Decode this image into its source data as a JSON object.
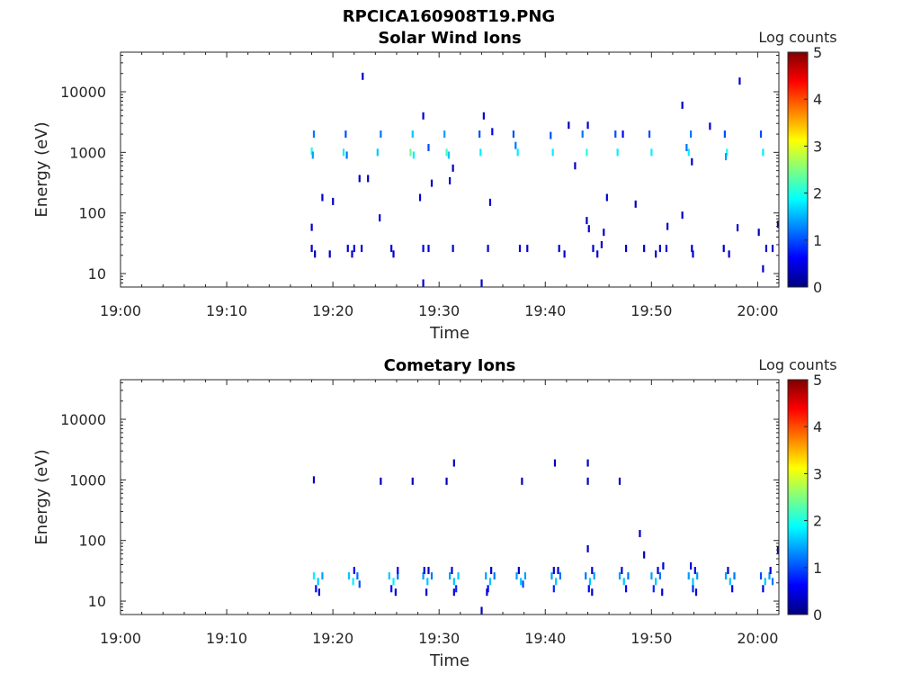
{
  "figure": {
    "filename": "RPCICA160908T19.PNG",
    "colorbar": {
      "label": "Log counts",
      "ticks": [
        "0",
        "1",
        "2",
        "3",
        "4",
        "5"
      ],
      "range": [
        0,
        5
      ],
      "colormap": "jet"
    }
  },
  "chart_data": [
    {
      "type": "heatmap",
      "title": "Solar Wind Ions",
      "xlabel": "Time",
      "ylabel": "Energy (eV)",
      "x_ticks": [
        "19:00",
        "19:10",
        "19:20",
        "19:30",
        "19:40",
        "19:50",
        "20:00"
      ],
      "y_ticks": [
        "10",
        "100",
        "1000",
        "10000"
      ],
      "y_scale": "log",
      "x_range_min": [
        0,
        62
      ],
      "y_range_ev": [
        6,
        45000
      ],
      "note_x_units": "minutes after 19:00",
      "cells": [
        [
          18.2,
          2000,
          1.2
        ],
        [
          18.0,
          1050,
          2.0
        ],
        [
          18.1,
          900,
          1.4
        ],
        [
          21.2,
          2000,
          1.0
        ],
        [
          21.0,
          1000,
          1.8
        ],
        [
          21.3,
          900,
          1.2
        ],
        [
          24.5,
          2000,
          1.2
        ],
        [
          24.2,
          1000,
          1.6
        ],
        [
          27.5,
          2000,
          1.6
        ],
        [
          27.3,
          1000,
          2.4
        ],
        [
          27.6,
          900,
          1.8
        ],
        [
          28.5,
          4000,
          0.4
        ],
        [
          29.0,
          1200,
          1.0
        ],
        [
          30.5,
          2000,
          1.4
        ],
        [
          30.7,
          1000,
          2.2
        ],
        [
          30.9,
          900,
          1.6
        ],
        [
          33.8,
          2000,
          1.0
        ],
        [
          33.9,
          1000,
          1.8
        ],
        [
          34.2,
          4000,
          0.4
        ],
        [
          35.0,
          2200,
          0.6
        ],
        [
          37.0,
          2000,
          1.0
        ],
        [
          37.4,
          1000,
          1.8
        ],
        [
          37.2,
          1300,
          1.2
        ],
        [
          40.5,
          1900,
          1.0
        ],
        [
          40.7,
          1000,
          1.8
        ],
        [
          43.5,
          2000,
          1.2
        ],
        [
          43.9,
          1000,
          2.0
        ],
        [
          44.0,
          2800,
          0.4
        ],
        [
          46.6,
          2000,
          1.0
        ],
        [
          46.8,
          1000,
          1.8
        ],
        [
          49.8,
          2000,
          1.0
        ],
        [
          50.0,
          1000,
          1.8
        ],
        [
          53.7,
          2000,
          1.2
        ],
        [
          53.5,
          1000,
          1.8
        ],
        [
          53.3,
          1200,
          1.2
        ],
        [
          53.8,
          700,
          0.4
        ],
        [
          56.9,
          2000,
          1.0
        ],
        [
          57.1,
          1000,
          2.0
        ],
        [
          57.0,
          850,
          1.4
        ],
        [
          60.3,
          2000,
          1.0
        ],
        [
          60.5,
          1000,
          1.8
        ],
        [
          55.5,
          2700,
          0.4
        ],
        [
          58.3,
          15000,
          0.4
        ],
        [
          22.8,
          18000,
          0.4
        ],
        [
          52.9,
          6000,
          0.4
        ],
        [
          42.2,
          2800,
          0.3
        ],
        [
          47.3,
          2000,
          0.6
        ],
        [
          18.0,
          58,
          0.4
        ],
        [
          19.0,
          180,
          0.4
        ],
        [
          20.0,
          155,
          0.3
        ],
        [
          22.5,
          370,
          0.3
        ],
        [
          23.3,
          370,
          0.3
        ],
        [
          24.4,
          83,
          0.4
        ],
        [
          28.2,
          180,
          0.4
        ],
        [
          29.3,
          310,
          0.3
        ],
        [
          31.0,
          340,
          0.3
        ],
        [
          31.3,
          550,
          0.3
        ],
        [
          34.8,
          150,
          0.4
        ],
        [
          42.8,
          600,
          0.3
        ],
        [
          43.9,
          75,
          0.3
        ],
        [
          44.1,
          55,
          0.4
        ],
        [
          45.5,
          48,
          0.4
        ],
        [
          45.8,
          180,
          0.4
        ],
        [
          48.5,
          140,
          0.3
        ],
        [
          51.5,
          60,
          0.4
        ],
        [
          52.9,
          92,
          0.4
        ],
        [
          58.1,
          57,
          0.4
        ],
        [
          60.1,
          48,
          0.3
        ],
        [
          61.9,
          65,
          0.3
        ],
        [
          18.0,
          26,
          0.4
        ],
        [
          18.3,
          21,
          0.3
        ],
        [
          19.7,
          21,
          0.3
        ],
        [
          21.4,
          26,
          0.5
        ],
        [
          22.0,
          26,
          0.5
        ],
        [
          21.8,
          21,
          0.4
        ],
        [
          22.7,
          26,
          0.4
        ],
        [
          25.5,
          26,
          0.4
        ],
        [
          25.7,
          21,
          0.4
        ],
        [
          28.5,
          26,
          0.5
        ],
        [
          29.0,
          26,
          0.4
        ],
        [
          31.3,
          26,
          0.4
        ],
        [
          34.6,
          26,
          0.4
        ],
        [
          37.6,
          26,
          0.4
        ],
        [
          38.3,
          26,
          0.4
        ],
        [
          41.3,
          26,
          0.4
        ],
        [
          41.8,
          21,
          0.4
        ],
        [
          44.5,
          26,
          0.4
        ],
        [
          44.9,
          21,
          0.4
        ],
        [
          45.3,
          30,
          0.4
        ],
        [
          47.6,
          26,
          0.4
        ],
        [
          49.3,
          26,
          0.4
        ],
        [
          50.8,
          26,
          0.4
        ],
        [
          50.4,
          21,
          0.4
        ],
        [
          51.4,
          26,
          0.4
        ],
        [
          53.8,
          26,
          0.4
        ],
        [
          53.9,
          21,
          0.4
        ],
        [
          56.8,
          26,
          0.4
        ],
        [
          57.3,
          21,
          0.4
        ],
        [
          60.8,
          26,
          0.4
        ],
        [
          61.4,
          26,
          0.4
        ],
        [
          60.5,
          12,
          0.4
        ],
        [
          28.5,
          7,
          0.4
        ],
        [
          34.0,
          7,
          0.4
        ]
      ]
    },
    {
      "type": "heatmap",
      "title": "Cometary Ions",
      "xlabel": "Time",
      "ylabel": "Energy (eV)",
      "x_ticks": [
        "19:00",
        "19:10",
        "19:20",
        "19:30",
        "19:40",
        "19:50",
        "20:00"
      ],
      "y_ticks": [
        "10",
        "100",
        "1000",
        "10000"
      ],
      "y_scale": "log",
      "x_range_min": [
        0,
        62
      ],
      "y_range_ev": [
        6,
        45000
      ],
      "note_x_units": "minutes after 19:00",
      "cells": [
        [
          18.2,
          1000,
          0.3
        ],
        [
          24.5,
          950,
          0.3
        ],
        [
          27.5,
          950,
          0.3
        ],
        [
          30.7,
          950,
          0.3
        ],
        [
          31.4,
          1900,
          0.3
        ],
        [
          37.8,
          950,
          0.3
        ],
        [
          40.9,
          1900,
          0.3
        ],
        [
          44.0,
          1900,
          0.3
        ],
        [
          44.0,
          950,
          0.3
        ],
        [
          47.0,
          950,
          0.3
        ],
        [
          48.9,
          130,
          0.3
        ],
        [
          49.3,
          58,
          0.3
        ],
        [
          44.0,
          73,
          0.3
        ],
        [
          61.9,
          70,
          0.3
        ],
        [
          34.0,
          7,
          0.3
        ],
        [
          18.2,
          26,
          1.8
        ],
        [
          18.6,
          21,
          1.6
        ],
        [
          19.0,
          26,
          1.4
        ],
        [
          18.4,
          16,
          0.6
        ],
        [
          18.7,
          14,
          0.4
        ],
        [
          21.5,
          26,
          1.6
        ],
        [
          21.9,
          21,
          1.8
        ],
        [
          22.3,
          26,
          1.2
        ],
        [
          22.0,
          32,
          0.6
        ],
        [
          22.5,
          19,
          1.0
        ],
        [
          25.3,
          26,
          1.6
        ],
        [
          25.7,
          21,
          1.8
        ],
        [
          26.1,
          26,
          1.2
        ],
        [
          25.5,
          16,
          0.6
        ],
        [
          25.9,
          14,
          0.4
        ],
        [
          26.1,
          32,
          0.6
        ],
        [
          28.5,
          26,
          1.4
        ],
        [
          28.9,
          21,
          1.6
        ],
        [
          29.3,
          26,
          1.2
        ],
        [
          28.6,
          32,
          0.4
        ],
        [
          29.0,
          32,
          0.4
        ],
        [
          28.8,
          14,
          0.4
        ],
        [
          31.0,
          26,
          1.4
        ],
        [
          31.4,
          21,
          1.6
        ],
        [
          31.8,
          26,
          1.6
        ],
        [
          31.2,
          32,
          0.4
        ],
        [
          31.6,
          16,
          0.8
        ],
        [
          31.4,
          14,
          0.4
        ],
        [
          34.4,
          26,
          1.4
        ],
        [
          34.8,
          21,
          1.6
        ],
        [
          35.2,
          26,
          1.2
        ],
        [
          34.6,
          16,
          0.6
        ],
        [
          34.5,
          14,
          0.4
        ],
        [
          34.9,
          32,
          0.4
        ],
        [
          37.3,
          26,
          1.4
        ],
        [
          37.7,
          21,
          1.6
        ],
        [
          38.1,
          26,
          1.4
        ],
        [
          37.5,
          32,
          0.4
        ],
        [
          37.9,
          19,
          1.0
        ],
        [
          40.6,
          26,
          1.4
        ],
        [
          41.0,
          21,
          1.6
        ],
        [
          41.4,
          26,
          1.2
        ],
        [
          40.8,
          32,
          0.4
        ],
        [
          41.2,
          32,
          0.4
        ],
        [
          40.8,
          16,
          0.8
        ],
        [
          43.8,
          26,
          1.2
        ],
        [
          44.2,
          21,
          1.6
        ],
        [
          44.6,
          26,
          1.4
        ],
        [
          44.4,
          32,
          0.4
        ],
        [
          44.1,
          16,
          0.6
        ],
        [
          44.4,
          14,
          0.4
        ],
        [
          47.0,
          26,
          1.4
        ],
        [
          47.4,
          21,
          1.6
        ],
        [
          47.8,
          26,
          1.2
        ],
        [
          47.2,
          32,
          0.4
        ],
        [
          47.6,
          16,
          0.6
        ],
        [
          50.0,
          26,
          1.4
        ],
        [
          50.4,
          21,
          1.6
        ],
        [
          50.8,
          26,
          1.2
        ],
        [
          50.6,
          32,
          0.4
        ],
        [
          50.2,
          16,
          0.8
        ],
        [
          51.0,
          14,
          0.4
        ],
        [
          51.1,
          38,
          0.4
        ],
        [
          53.5,
          26,
          1.4
        ],
        [
          53.9,
          21,
          1.6
        ],
        [
          54.3,
          26,
          1.4
        ],
        [
          53.7,
          38,
          0.4
        ],
        [
          54.1,
          32,
          0.6
        ],
        [
          53.9,
          16,
          0.8
        ],
        [
          54.2,
          14,
          0.4
        ],
        [
          57.0,
          26,
          1.4
        ],
        [
          57.4,
          21,
          1.6
        ],
        [
          57.8,
          26,
          1.2
        ],
        [
          57.2,
          32,
          0.4
        ],
        [
          57.6,
          16,
          0.6
        ],
        [
          60.3,
          26,
          1.0
        ],
        [
          60.7,
          21,
          1.6
        ],
        [
          61.1,
          26,
          1.4
        ],
        [
          61.4,
          21,
          1.2
        ],
        [
          60.5,
          16,
          0.4
        ],
        [
          61.2,
          32,
          0.4
        ]
      ]
    }
  ]
}
